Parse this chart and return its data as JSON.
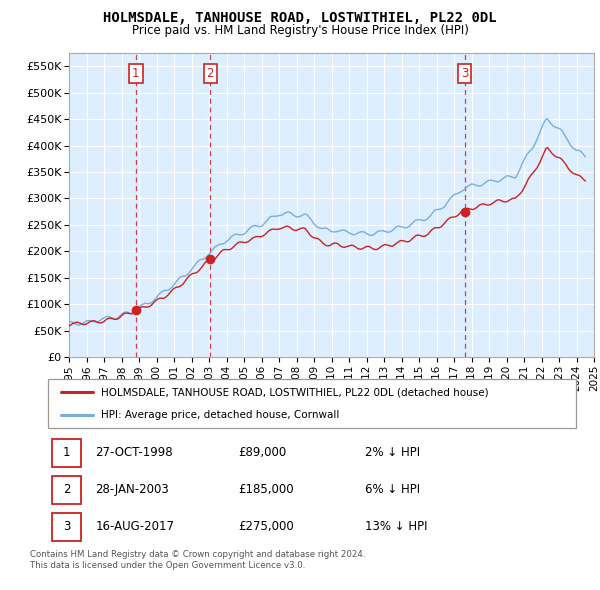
{
  "title": "HOLMSDALE, TANHOUSE ROAD, LOSTWITHIEL, PL22 0DL",
  "subtitle": "Price paid vs. HM Land Registry's House Price Index (HPI)",
  "yticks": [
    0,
    50000,
    100000,
    150000,
    200000,
    250000,
    300000,
    350000,
    400000,
    450000,
    500000,
    550000
  ],
  "ytick_labels": [
    "£0",
    "£50K",
    "£100K",
    "£150K",
    "£200K",
    "£250K",
    "£300K",
    "£350K",
    "£400K",
    "£450K",
    "£500K",
    "£550K"
  ],
  "hpi_color": "#7aadde",
  "price_color": "#cc2222",
  "vline_color": "#cc2222",
  "bg_color": "#ddeeff",
  "sale_points": [
    {
      "year": 1998.82,
      "price": 89000,
      "label": "1"
    },
    {
      "year": 2003.07,
      "price": 185000,
      "label": "2"
    },
    {
      "year": 2017.62,
      "price": 275000,
      "label": "3"
    }
  ],
  "legend_label_price": "HOLMSDALE, TANHOUSE ROAD, LOSTWITHIEL, PL22 0DL (detached house)",
  "legend_label_hpi": "HPI: Average price, detached house, Cornwall",
  "table_rows": [
    {
      "num": "1",
      "date": "27-OCT-1998",
      "price": "£89,000",
      "hpi": "2% ↓ HPI"
    },
    {
      "num": "2",
      "date": "28-JAN-2003",
      "price": "£185,000",
      "hpi": "6% ↓ HPI"
    },
    {
      "num": "3",
      "date": "16-AUG-2017",
      "price": "£275,000",
      "hpi": "13% ↓ HPI"
    }
  ],
  "footnote1": "Contains HM Land Registry data © Crown copyright and database right 2024.",
  "footnote2": "This data is licensed under the Open Government Licence v3.0.",
  "xmin": 1995.0,
  "xmax": 2025.0
}
